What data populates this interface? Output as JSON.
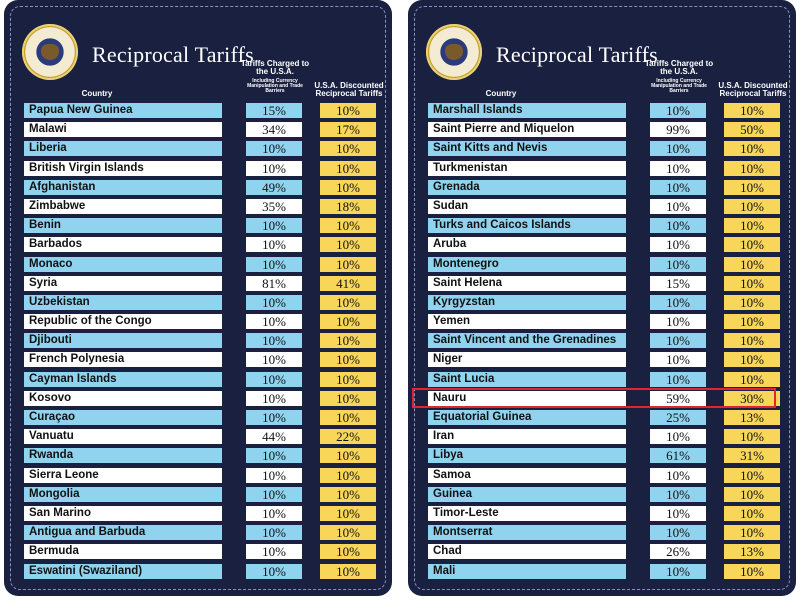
{
  "panels": [
    {
      "title": "Reciprocal Tariffs",
      "headers": {
        "country": "Country",
        "charged": "Tariffs Charged to the U.S.A.",
        "charged_sub": "Including Currency Manipulation and Trade Barriers",
        "discounted": "U.S.A. Discounted Reciprocal Tariffs"
      },
      "rows": [
        {
          "country": "Papua New Guinea",
          "charged": "15%",
          "discounted": "10%"
        },
        {
          "country": "Malawi",
          "charged": "34%",
          "discounted": "17%"
        },
        {
          "country": "Liberia",
          "charged": "10%",
          "discounted": "10%"
        },
        {
          "country": "British Virgin Islands",
          "charged": "10%",
          "discounted": "10%"
        },
        {
          "country": "Afghanistan",
          "charged": "49%",
          "discounted": "10%"
        },
        {
          "country": "Zimbabwe",
          "charged": "35%",
          "discounted": "18%"
        },
        {
          "country": "Benin",
          "charged": "10%",
          "discounted": "10%"
        },
        {
          "country": "Barbados",
          "charged": "10%",
          "discounted": "10%"
        },
        {
          "country": "Monaco",
          "charged": "10%",
          "discounted": "10%"
        },
        {
          "country": "Syria",
          "charged": "81%",
          "discounted": "41%"
        },
        {
          "country": "Uzbekistan",
          "charged": "10%",
          "discounted": "10%"
        },
        {
          "country": "Republic of the Congo",
          "charged": "10%",
          "discounted": "10%"
        },
        {
          "country": "Djibouti",
          "charged": "10%",
          "discounted": "10%"
        },
        {
          "country": "French Polynesia",
          "charged": "10%",
          "discounted": "10%"
        },
        {
          "country": "Cayman Islands",
          "charged": "10%",
          "discounted": "10%"
        },
        {
          "country": "Kosovo",
          "charged": "10%",
          "discounted": "10%"
        },
        {
          "country": "Curaçao",
          "charged": "10%",
          "discounted": "10%"
        },
        {
          "country": "Vanuatu",
          "charged": "44%",
          "discounted": "22%"
        },
        {
          "country": "Rwanda",
          "charged": "10%",
          "discounted": "10%"
        },
        {
          "country": "Sierra Leone",
          "charged": "10%",
          "discounted": "10%"
        },
        {
          "country": "Mongolia",
          "charged": "10%",
          "discounted": "10%"
        },
        {
          "country": "San Marino",
          "charged": "10%",
          "discounted": "10%"
        },
        {
          "country": "Antigua and Barbuda",
          "charged": "10%",
          "discounted": "10%"
        },
        {
          "country": "Bermuda",
          "charged": "10%",
          "discounted": "10%"
        },
        {
          "country": "Eswatini (Swaziland)",
          "charged": "10%",
          "discounted": "10%"
        }
      ]
    },
    {
      "title": "Reciprocal Tariffs",
      "headers": {
        "country": "Country",
        "charged": "Tariffs Charged to the U.S.A.",
        "charged_sub": "Including Currency Manipulation and Trade Barriers",
        "discounted": "U.S.A. Discounted Reciprocal Tariffs"
      },
      "highlighted_row": "Nauru",
      "rows": [
        {
          "country": "Marshall Islands",
          "charged": "10%",
          "discounted": "10%"
        },
        {
          "country": "Saint Pierre and Miquelon",
          "charged": "99%",
          "discounted": "50%"
        },
        {
          "country": "Saint Kitts and Nevis",
          "charged": "10%",
          "discounted": "10%"
        },
        {
          "country": "Turkmenistan",
          "charged": "10%",
          "discounted": "10%"
        },
        {
          "country": "Grenada",
          "charged": "10%",
          "discounted": "10%"
        },
        {
          "country": "Sudan",
          "charged": "10%",
          "discounted": "10%"
        },
        {
          "country": "Turks and Caicos Islands",
          "charged": "10%",
          "discounted": "10%"
        },
        {
          "country": "Aruba",
          "charged": "10%",
          "discounted": "10%"
        },
        {
          "country": "Montenegro",
          "charged": "10%",
          "discounted": "10%"
        },
        {
          "country": "Saint Helena",
          "charged": "15%",
          "discounted": "10%"
        },
        {
          "country": "Kyrgyzstan",
          "charged": "10%",
          "discounted": "10%"
        },
        {
          "country": "Yemen",
          "charged": "10%",
          "discounted": "10%"
        },
        {
          "country": "Saint Vincent and the Grenadines",
          "charged": "10%",
          "discounted": "10%"
        },
        {
          "country": "Niger",
          "charged": "10%",
          "discounted": "10%"
        },
        {
          "country": "Saint Lucia",
          "charged": "10%",
          "discounted": "10%"
        },
        {
          "country": "Nauru",
          "charged": "59%",
          "discounted": "30%"
        },
        {
          "country": "Equatorial Guinea",
          "charged": "25%",
          "discounted": "13%"
        },
        {
          "country": "Iran",
          "charged": "10%",
          "discounted": "10%"
        },
        {
          "country": "Libya",
          "charged": "61%",
          "discounted": "31%"
        },
        {
          "country": "Samoa",
          "charged": "10%",
          "discounted": "10%"
        },
        {
          "country": "Guinea",
          "charged": "10%",
          "discounted": "10%"
        },
        {
          "country": "Timor-Leste",
          "charged": "10%",
          "discounted": "10%"
        },
        {
          "country": "Montserrat",
          "charged": "10%",
          "discounted": "10%"
        },
        {
          "country": "Chad",
          "charged": "26%",
          "discounted": "13%"
        },
        {
          "country": "Mali",
          "charged": "10%",
          "discounted": "10%"
        }
      ]
    }
  ]
}
